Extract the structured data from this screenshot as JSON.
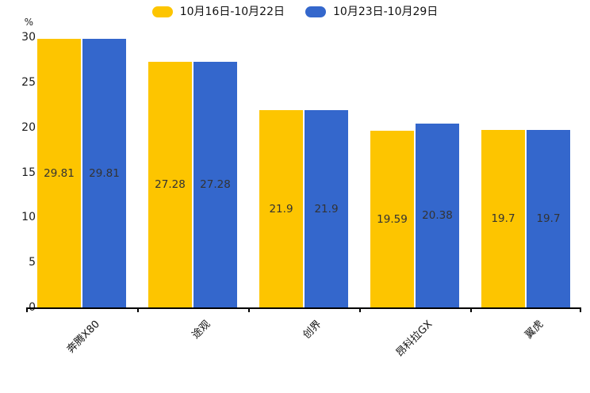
{
  "chart_data": {
    "type": "bar",
    "title": "",
    "ylabel": "%",
    "xlabel": "",
    "ylim": [
      0,
      30
    ],
    "yticks": [
      0,
      5,
      10,
      15,
      20,
      25,
      30
    ],
    "grid": false,
    "legend_position": "top",
    "categories": [
      "奔腾X80",
      "途观",
      "创界",
      "昂科拉GX",
      "翼虎"
    ],
    "series": [
      {
        "name": "10月16日-10月22日",
        "color": "#FDC500",
        "values": [
          29.81,
          27.28,
          21.9,
          19.59,
          19.7
        ]
      },
      {
        "name": "10月23日-10月29日",
        "color": "#3467CC",
        "values": [
          29.81,
          27.28,
          21.9,
          20.38,
          19.7
        ]
      }
    ],
    "value_label_color": "#333333",
    "axis_color": "#000000"
  }
}
